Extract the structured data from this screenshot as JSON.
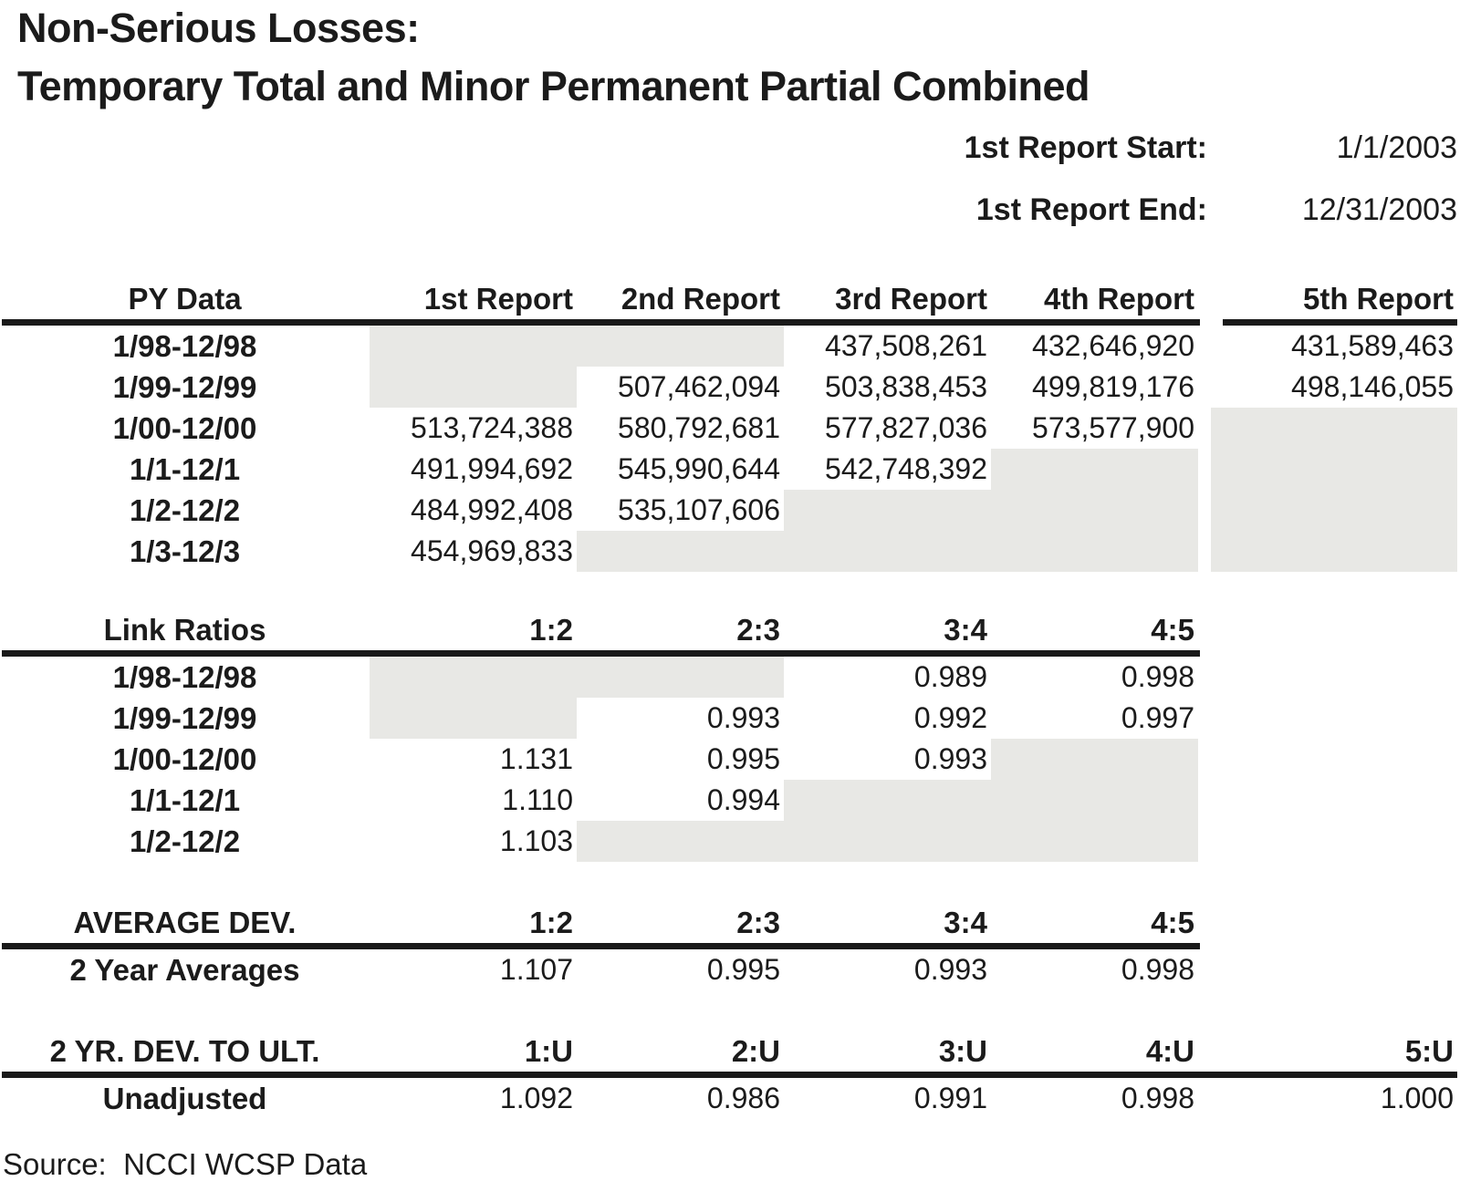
{
  "title": {
    "line1": "Non-Serious Losses:",
    "line2": "Temporary Total and Minor Permanent Partial Combined"
  },
  "report_info": {
    "start": {
      "label": "1st Report Start:",
      "value": "1/1/2003"
    },
    "end": {
      "label": "1st Report End:",
      "value": "12/31/2003"
    }
  },
  "tables": [
    {
      "name": "py-data",
      "header_label": "PY Data",
      "columns": [
        "1st Report",
        "2nd Report",
        "3rd Report",
        "4th Report",
        "5th Report"
      ],
      "detached_last_col": true,
      "full_rule": false,
      "rows": [
        {
          "label": "1/98-12/98",
          "cells": [
            null,
            null,
            "437,508,261",
            "432,646,920",
            "431,589,463"
          ]
        },
        {
          "label": "1/99-12/99",
          "cells": [
            null,
            "507,462,094",
            "503,838,453",
            "499,819,176",
            "498,146,055"
          ]
        },
        {
          "label": "1/00-12/00",
          "cells": [
            "513,724,388",
            "580,792,681",
            "577,827,036",
            "573,577,900",
            null
          ]
        },
        {
          "label": "1/1-12/1",
          "cells": [
            "491,994,692",
            "545,990,644",
            "542,748,392",
            null,
            null
          ]
        },
        {
          "label": "1/2-12/2",
          "cells": [
            "484,992,408",
            "535,107,606",
            null,
            null,
            null
          ]
        },
        {
          "label": "1/3-12/3",
          "cells": [
            "454,969,833",
            null,
            null,
            null,
            null
          ]
        }
      ]
    },
    {
      "name": "link-ratios",
      "header_label": "Link Ratios",
      "columns": [
        "1:2",
        "2:3",
        "3:4",
        "4:5"
      ],
      "detached_last_col": false,
      "full_rule": false,
      "rows": [
        {
          "label": "1/98-12/98",
          "cells": [
            null,
            null,
            "0.989",
            "0.998"
          ]
        },
        {
          "label": "1/99-12/99",
          "cells": [
            null,
            "0.993",
            "0.992",
            "0.997"
          ]
        },
        {
          "label": "1/00-12/00",
          "cells": [
            "1.131",
            "0.995",
            "0.993",
            null
          ]
        },
        {
          "label": "1/1-12/1",
          "cells": [
            "1.110",
            "0.994",
            null,
            null
          ]
        },
        {
          "label": "1/2-12/2",
          "cells": [
            "1.103",
            null,
            null,
            null
          ]
        }
      ]
    },
    {
      "name": "average-dev",
      "header_label": "AVERAGE DEV.",
      "columns": [
        "1:2",
        "2:3",
        "3:4",
        "4:5"
      ],
      "detached_last_col": false,
      "full_rule": false,
      "rows": [
        {
          "label": "2 Year Averages",
          "cells": [
            "1.107",
            "0.995",
            "0.993",
            "0.998"
          ]
        }
      ]
    },
    {
      "name": "dev-to-ult",
      "header_label": "2 YR. DEV. TO ULT.",
      "columns": [
        "1:U",
        "2:U",
        "3:U",
        "4:U",
        "5:U"
      ],
      "detached_last_col": true,
      "full_rule": true,
      "rows": [
        {
          "label": "Unadjusted",
          "cells": [
            "1.092",
            "0.986",
            "0.991",
            "0.998",
            "1.000"
          ]
        }
      ]
    }
  ],
  "source": "Source:  NCCI WCSP Data",
  "colors": {
    "shaded_cell": "#e8e8e5",
    "rule": "#1a1a1a",
    "text": "#1b1b1b",
    "background": "#ffffff"
  }
}
